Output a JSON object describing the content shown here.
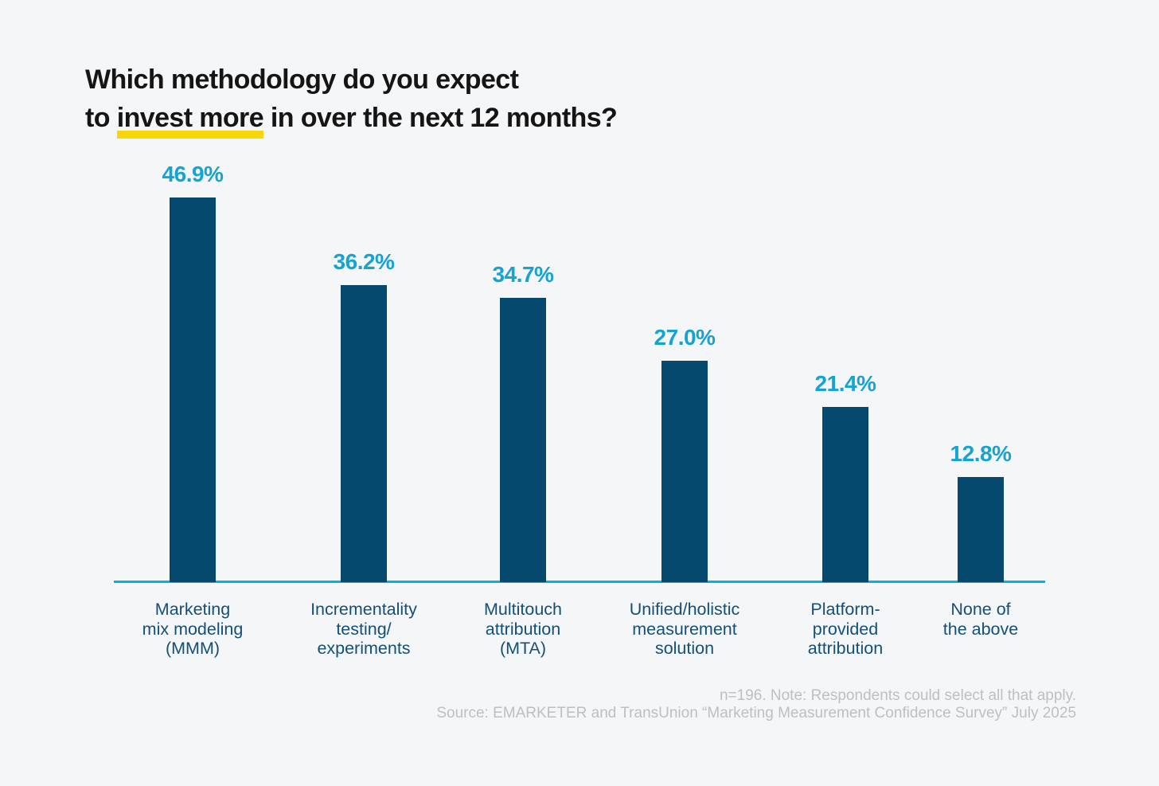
{
  "page": {
    "background_color": "#F5F6F8"
  },
  "title": {
    "line1": "Which methodology do you expect",
    "line2_pre": "to ",
    "line2_highlight": "invest more",
    "line2_post": " in over the next 12 months?",
    "highlight_color": "#F5D70A",
    "text_color": "#151515"
  },
  "chart_data": {
    "type": "bar",
    "title": "Which methodology do you expect to invest more in over the next 12 months?",
    "categories": [
      "Marketing mix modeling (MMM)",
      "Incrementality testing/ experiments",
      "Multitouch attribution (MTA)",
      "Unified/holistic measurement solution",
      "Platform-provided attribution",
      "None of the above"
    ],
    "category_lines": [
      [
        "Marketing",
        "mix modeling",
        "(MMM)"
      ],
      [
        "Incrementality",
        "testing/",
        "experiments"
      ],
      [
        "Multitouch",
        "attribution",
        "(MTA)"
      ],
      [
        "Unified/holistic",
        "measurement",
        "solution"
      ],
      [
        "Platform-",
        "provided",
        "attribution"
      ],
      [
        "None of",
        "the above"
      ]
    ],
    "values": [
      46.9,
      36.2,
      34.7,
      27.0,
      21.4,
      12.8
    ],
    "value_labels": [
      "46.9%",
      "36.2%",
      "34.7%",
      "27.0%",
      "21.4%",
      "12.8%"
    ],
    "unit": "%",
    "ylim": [
      0,
      50
    ],
    "grid": false,
    "legend": "none",
    "value_labels_position": "above-bars",
    "bar_color": "#05496E",
    "value_label_color": "#15A3D2",
    "axis_line_color": "#00B2E5",
    "category_label_color": "#144F77"
  },
  "footer": {
    "note": "n=196. Note: Respondents could select all that apply.",
    "source": "Source: EMARKETER and TransUnion “Marketing Measurement Confidence Survey” July 2025"
  }
}
